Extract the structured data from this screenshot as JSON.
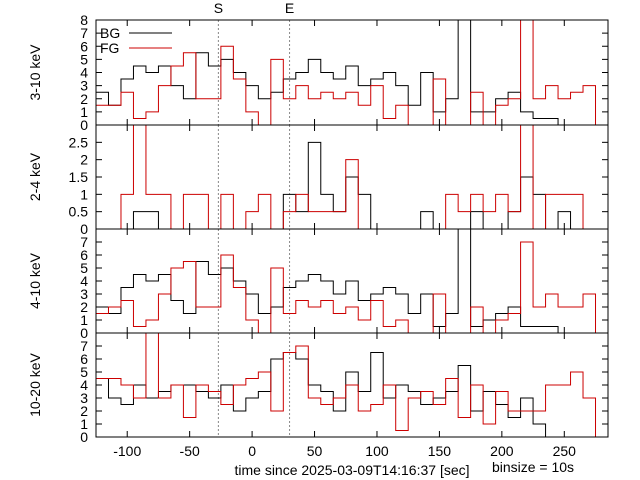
{
  "chart_data": {
    "type": "line",
    "xlabel": "time since 2025-03-09T14:16:37 [sec]",
    "binsize_label": "binsize = 10s",
    "xlim": [
      -125,
      285
    ],
    "xticks": [
      -100,
      -50,
      0,
      50,
      100,
      150,
      200,
      250
    ],
    "xtick_labels": [
      "-100",
      "-50",
      "0",
      "50",
      "100",
      "150",
      "200",
      "250"
    ],
    "markers": [
      {
        "label": "S",
        "x": -27
      },
      {
        "label": "E",
        "x": 30
      }
    ],
    "legend": [
      {
        "name": "BG",
        "color": "#000000"
      },
      {
        "name": "FG",
        "color": "#cc0000"
      }
    ],
    "colors": {
      "bg": "#000000",
      "fg": "#cc0000",
      "marker": "#888888"
    },
    "bin_edges": [
      -125,
      -115,
      -105,
      -95,
      -85,
      -75,
      -65,
      -55,
      -45,
      -35,
      -25,
      -15,
      -5,
      5,
      15,
      25,
      35,
      45,
      55,
      65,
      75,
      85,
      95,
      105,
      115,
      125,
      135,
      145,
      155,
      165,
      175,
      185,
      195,
      205,
      215,
      225,
      235,
      245,
      255,
      265,
      275,
      285
    ],
    "panels": [
      {
        "ylabel": "3-10 keV",
        "ylim": [
          0,
          8
        ],
        "yticks": [
          0,
          1,
          2,
          3,
          4,
          5,
          6,
          7,
          8
        ],
        "ytick_labels": [
          "0",
          "1",
          "2",
          "3",
          "4",
          "5",
          "6",
          "7",
          "8"
        ],
        "bg": [
          2.5,
          1.5,
          3.5,
          4.5,
          4,
          4.5,
          3,
          2,
          5.5,
          4.5,
          5,
          4,
          3,
          2,
          2.5,
          3.5,
          4,
          5,
          4,
          3.5,
          4.5,
          3,
          3.5,
          4,
          3,
          1.5,
          4,
          1,
          2,
          8,
          1,
          1,
          2,
          2.5,
          1,
          0.5,
          0.5,
          0,
          0,
          0,
          0
        ],
        "fg": [
          1.5,
          1.5,
          2.5,
          0.5,
          1,
          3,
          4.5,
          5.5,
          2,
          2,
          6,
          3.5,
          1,
          0,
          5,
          2,
          3,
          2,
          2.5,
          2,
          2.5,
          1.5,
          3,
          0.5,
          1.5,
          0,
          0,
          3.5,
          0,
          0,
          2.5,
          0,
          1.5,
          2,
          8,
          2,
          3,
          2,
          2.5,
          3,
          0
        ]
      },
      {
        "ylabel": "2-4 keV",
        "ylim": [
          0,
          3
        ],
        "yticks": [
          0,
          0.5,
          1,
          1.5,
          2,
          2.5
        ],
        "ytick_labels": [
          "0",
          "0.5",
          "1",
          "1.5",
          "2",
          "2.5"
        ],
        "bg": [
          0,
          0,
          0,
          0.5,
          0.5,
          0,
          0,
          0,
          0,
          0,
          0,
          0,
          0,
          0,
          0,
          1,
          0.5,
          2.5,
          1,
          0.5,
          1.5,
          1,
          0,
          0,
          0,
          0,
          0.5,
          0,
          0,
          0,
          0.5,
          0,
          0,
          0.5,
          1.5,
          1,
          0,
          0.5,
          0,
          0,
          0
        ],
        "fg": [
          0,
          0,
          1,
          3,
          1,
          1,
          0,
          1,
          1,
          0,
          1,
          0,
          0.5,
          1,
          0,
          0.5,
          1,
          0.5,
          0.5,
          0.5,
          2,
          0,
          0,
          0,
          0,
          0,
          0,
          0,
          1,
          0.5,
          1,
          0.5,
          1,
          0.5,
          3,
          0,
          1,
          1,
          1,
          0,
          0
        ]
      },
      {
        "ylabel": "4-10 keV",
        "ylim": [
          0,
          8
        ],
        "yticks": [
          0,
          1,
          2,
          3,
          4,
          5,
          6,
          7
        ],
        "ytick_labels": [
          "0",
          "1",
          "2",
          "3",
          "4",
          "5",
          "6",
          "7"
        ],
        "bg": [
          2,
          1.5,
          3.5,
          4.5,
          4,
          4.5,
          2.5,
          1.5,
          5.5,
          4.5,
          5,
          4,
          3,
          1.5,
          2,
          3.5,
          4,
          4.5,
          4,
          3,
          4,
          2.5,
          3,
          3.5,
          3,
          1.5,
          3,
          0.5,
          1.5,
          8,
          0.5,
          1,
          1.5,
          2,
          0.5,
          0.5,
          0.5,
          0,
          0,
          0,
          0
        ],
        "fg": [
          1.5,
          2,
          2.5,
          0.5,
          1,
          3,
          5,
          5.5,
          2,
          2,
          6,
          3.5,
          1,
          0,
          5,
          1.5,
          2.5,
          2,
          2.5,
          1.5,
          2,
          1,
          2.5,
          0.5,
          1,
          0,
          0,
          3,
          0,
          0,
          2,
          0,
          1,
          1.5,
          7,
          2,
          3,
          2,
          2,
          3,
          0
        ]
      },
      {
        "ylabel": "10-20 keV",
        "ylim": [
          0,
          8
        ],
        "yticks": [
          0,
          1,
          2,
          3,
          4,
          5,
          6,
          7
        ],
        "ytick_labels": [
          "0",
          "1",
          "2",
          "3",
          "4",
          "5",
          "6",
          "7"
        ],
        "bg": [
          4.5,
          3,
          2.5,
          4,
          3,
          3.5,
          4,
          4,
          3.5,
          3,
          4,
          2,
          3,
          3.5,
          6,
          6.5,
          6,
          4,
          3.5,
          2,
          5,
          3.5,
          6.5,
          3,
          4,
          3.5,
          2.5,
          3,
          3.5,
          5.5,
          2,
          3.5,
          2.5,
          1.5,
          3,
          1,
          0,
          0,
          0,
          0,
          0
        ],
        "fg": [
          4.5,
          4.5,
          4,
          3,
          8,
          3,
          4,
          1.5,
          4,
          3.5,
          2.5,
          4,
          4.5,
          5,
          2,
          6.5,
          7,
          3,
          2.5,
          3,
          4,
          2,
          2.5,
          4,
          0.5,
          3,
          3.5,
          2.5,
          4.5,
          1.5,
          4,
          1,
          3.5,
          2,
          2,
          2,
          4,
          4,
          5,
          3,
          0
        ]
      }
    ]
  }
}
